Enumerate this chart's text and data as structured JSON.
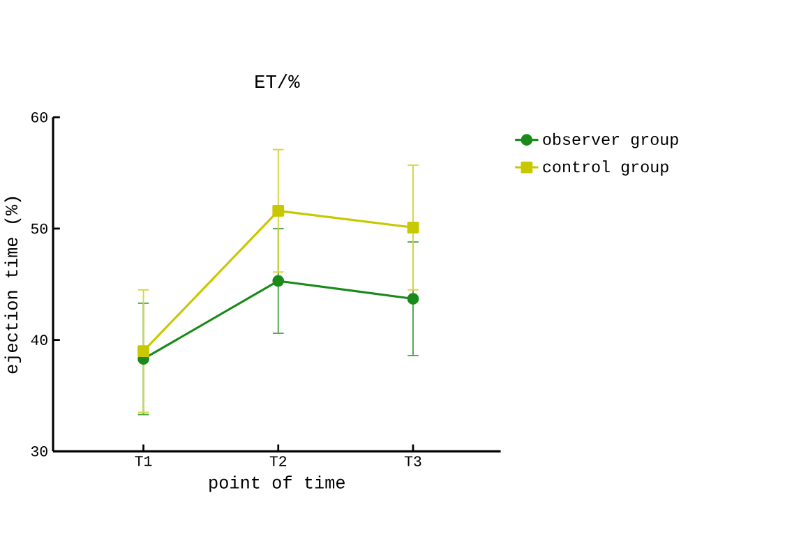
{
  "chart_data": {
    "type": "line",
    "title": "ET/%",
    "xlabel": "point of time",
    "ylabel": "ejection time (%)",
    "categories": [
      "T1",
      "T2",
      "T3"
    ],
    "ylim": [
      30,
      60
    ],
    "yticks": [
      30,
      40,
      50,
      60
    ],
    "legend": "top right",
    "series": [
      {
        "name": "observer group",
        "color": "#1a8a1a",
        "marker": "circle",
        "values": [
          38.3,
          45.3,
          43.7
        ],
        "errors": [
          5.0,
          4.7,
          5.1
        ]
      },
      {
        "name": "control group",
        "color": "#c8c800",
        "marker": "square",
        "values": [
          39.0,
          51.6,
          50.1
        ],
        "errors": [
          5.5,
          5.5,
          5.6
        ]
      }
    ]
  }
}
